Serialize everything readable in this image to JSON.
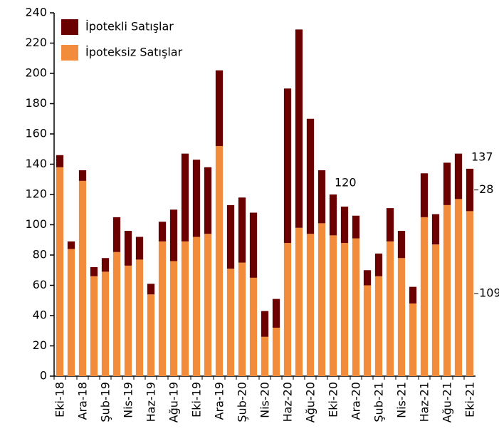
{
  "chart_data": {
    "type": "stacked_bar",
    "categories": [
      "Eki-18",
      null,
      "Ara-18",
      null,
      "Şub-19",
      null,
      "Nis-19",
      null,
      "Haz-19",
      null,
      "Ağu-19",
      null,
      "Eki-19",
      null,
      "Ara-19",
      null,
      "Şub-20",
      null,
      "Nis-20",
      null,
      "Haz-20",
      null,
      "Ağu-20",
      null,
      "Eki-20",
      null,
      "Ara-20",
      null,
      "Şub-21",
      null,
      "Nis-21",
      null,
      "Haz-21",
      null,
      "Ağu-21",
      null,
      "Eki-21"
    ],
    "series": [
      {
        "name": "İpoteksiz Satışlar",
        "color": "#f28c3c",
        "values": [
          138,
          84,
          129,
          66,
          69,
          82,
          73,
          77,
          54,
          89,
          76,
          89,
          92,
          94,
          152,
          71,
          75,
          65,
          26,
          32,
          88,
          98,
          94,
          101,
          93,
          88,
          91,
          60,
          66,
          89,
          78,
          48,
          105,
          87,
          113,
          117,
          109
        ],
        "value_labels": [
          null,
          null,
          null,
          null,
          null,
          null,
          null,
          null,
          null,
          null,
          null,
          null,
          null,
          null,
          null,
          null,
          null,
          null,
          null,
          null,
          null,
          null,
          null,
          null,
          null,
          null,
          null,
          null,
          null,
          null,
          null,
          null,
          null,
          null,
          null,
          null,
          "109"
        ]
      },
      {
        "name": "İpotekli Satışlar",
        "color": "#6b0000",
        "values": [
          8,
          5,
          7,
          6,
          9,
          23,
          23,
          15,
          7,
          13,
          34,
          58,
          51,
          44,
          50,
          42,
          43,
          43,
          17,
          19,
          102,
          131,
          76,
          35,
          27,
          24,
          15,
          10,
          15,
          22,
          18,
          11,
          29,
          20,
          28,
          30,
          28
        ],
        "value_labels": [
          null,
          null,
          null,
          null,
          null,
          null,
          null,
          null,
          null,
          null,
          null,
          null,
          null,
          null,
          null,
          null,
          null,
          null,
          null,
          null,
          null,
          null,
          null,
          null,
          null,
          null,
          null,
          null,
          null,
          null,
          null,
          null,
          null,
          null,
          null,
          null,
          "28"
        ]
      }
    ],
    "annotations": [
      {
        "text": "120",
        "category": "Eki-20"
      },
      {
        "text": "137",
        "category": "Eki-21"
      }
    ],
    "ylim": [
      0,
      240
    ],
    "yticks": [
      0,
      20,
      40,
      60,
      80,
      100,
      120,
      140,
      160,
      180,
      200,
      220,
      240
    ],
    "legend": "upper left"
  }
}
